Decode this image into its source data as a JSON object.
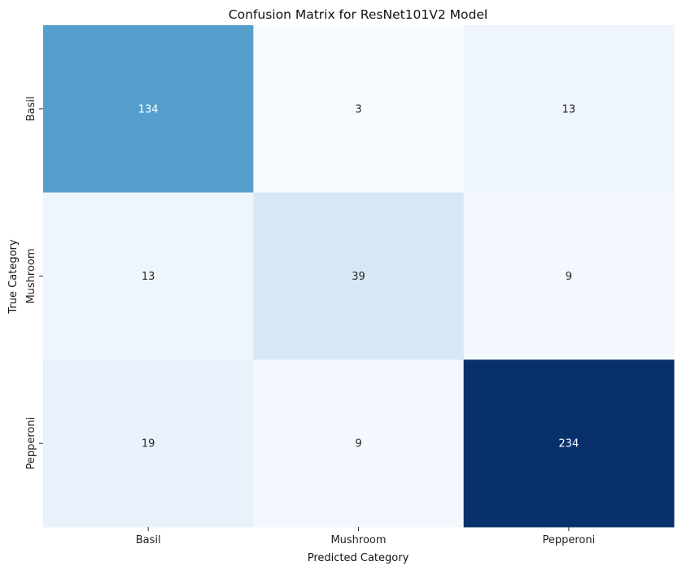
{
  "chart_data": {
    "type": "heatmap",
    "title": "Confusion Matrix for ResNet101V2 Model",
    "xlabel": "Predicted Category",
    "ylabel": "True Category",
    "x_categories": [
      "Basil",
      "Mushroom",
      "Pepperoni"
    ],
    "y_categories": [
      "Basil",
      "Mushroom",
      "Pepperoni"
    ],
    "values": [
      [
        134,
        3,
        13
      ],
      [
        13,
        39,
        9
      ],
      [
        19,
        9,
        234
      ]
    ],
    "colormap": "Blues",
    "colorbar": false,
    "annotated": true
  }
}
